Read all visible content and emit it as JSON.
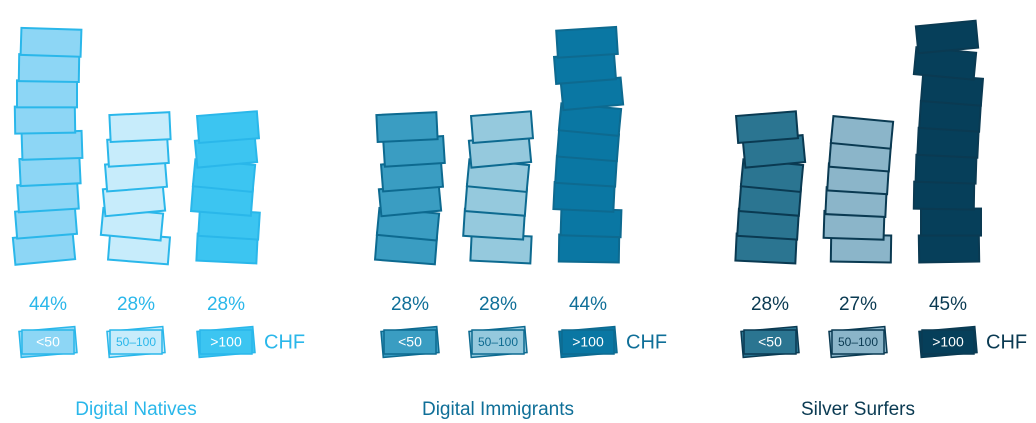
{
  "chart_data": [
    {
      "type": "bar",
      "title": "Digital Natives",
      "categories": [
        "<50",
        "50–100",
        ">100"
      ],
      "values": [
        44,
        28,
        28
      ],
      "value_labels": [
        "44%",
        "28%",
        "28%"
      ],
      "unit": "CHF",
      "colors": [
        "#8dd6f5",
        "#c7ecfb",
        "#3cc5f1"
      ],
      "edge_color": "#2ab7ea",
      "text_color": "#2ab7ea"
    },
    {
      "type": "bar",
      "title": "Digital Immigrants",
      "categories": [
        "<50",
        "50–100",
        ">100"
      ],
      "values": [
        28,
        28,
        44
      ],
      "value_labels": [
        "28%",
        "28%",
        "44%"
      ],
      "unit": "CHF",
      "colors": [
        "#3a9dc2",
        "#95c9dd",
        "#0a77a3"
      ],
      "edge_color": "#0d6a90",
      "text_color": "#0f6f98"
    },
    {
      "type": "bar",
      "title": "Silver Surfers",
      "categories": [
        "<50",
        "50–100",
        ">100"
      ],
      "values": [
        28,
        27,
        45
      ],
      "value_labels": [
        "28%",
        "27%",
        "45%"
      ],
      "unit": "CHF",
      "colors": [
        "#2b7591",
        "#8bb5c9",
        "#063f5a"
      ],
      "edge_color": "#0a3a52",
      "text_color": "#0a3a52"
    }
  ]
}
